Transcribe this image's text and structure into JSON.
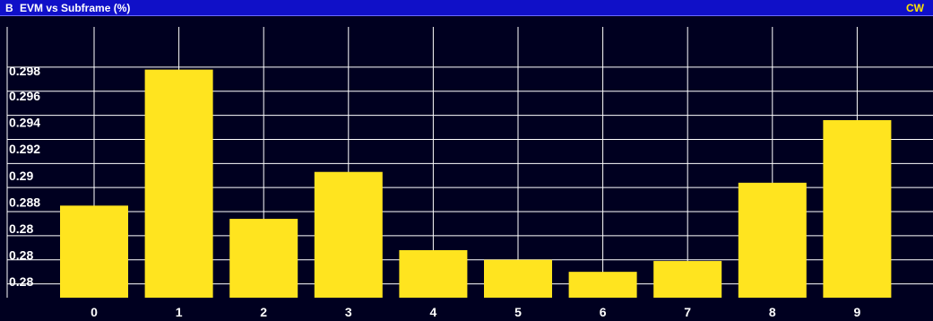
{
  "window": {
    "id": "B",
    "title": "EVM vs Subframe (%)",
    "mode_badge": "CW"
  },
  "colors": {
    "background": "#000020",
    "title_bar": "#1010c8",
    "bar_fill": "#ffe41f",
    "grid": "#ffffff",
    "text": "#ffffff",
    "badge": "#ffe400"
  },
  "chart_data": {
    "type": "bar",
    "title": "EVM vs Subframe (%)",
    "xlabel": "",
    "ylabel": "",
    "categories": [
      "0",
      "1",
      "2",
      "3",
      "4",
      "5",
      "6",
      "7",
      "8",
      "9"
    ],
    "values": [
      0.2875,
      0.2988,
      0.2864,
      0.2903,
      0.2838,
      0.283,
      0.282,
      0.2829,
      0.2894,
      0.2946
    ],
    "y_tick_labels": [
      "0.298",
      "0.296",
      "0.294",
      "0.292",
      "0.29",
      "0.288",
      "0.28",
      "0.28",
      "0.28"
    ],
    "ylim": [
      0.2807,
      0.3001
    ],
    "grid": true,
    "legend": "none"
  }
}
